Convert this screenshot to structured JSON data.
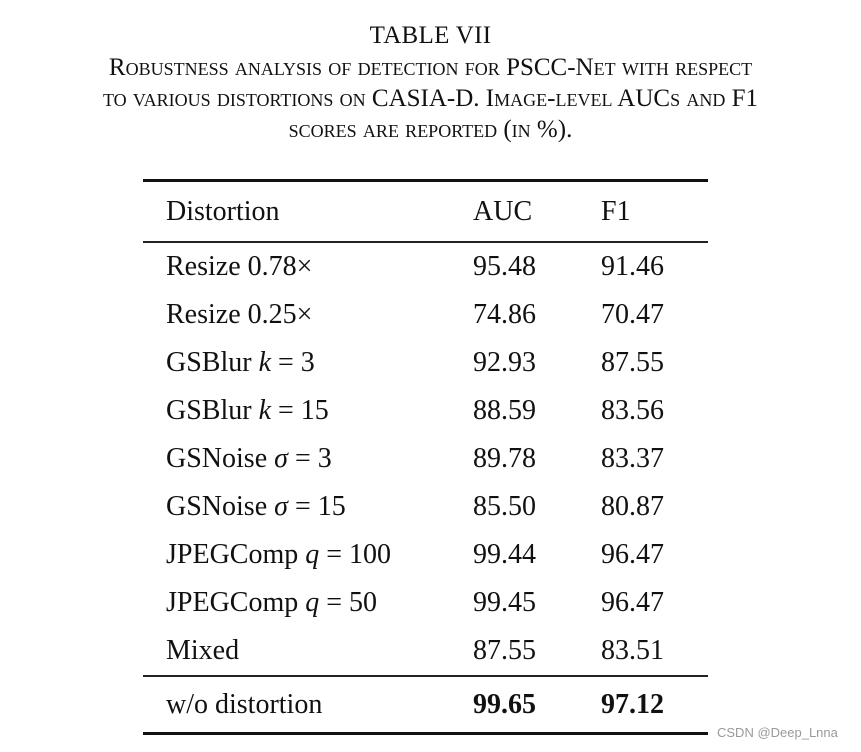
{
  "caption": {
    "title": "TABLE VII",
    "lines": [
      "Robustness analysis of detection for PSCC-Net with respect",
      "to various distortions on CASIA-D. Image-level AUCs and F1",
      "scores are reported (in %)."
    ]
  },
  "table": {
    "headers": {
      "distortion": "Distortion",
      "auc": "AUC",
      "f1": "F1"
    },
    "rows": [
      {
        "name": "Resize",
        "param": "0.78×",
        "auc": "95.48",
        "f1": "91.46"
      },
      {
        "name": "Resize",
        "param": "0.25×",
        "auc": "74.86",
        "f1": "70.47"
      },
      {
        "name": "GSBlur",
        "var": "k",
        "param": "= 3",
        "auc": "92.93",
        "f1": "87.55"
      },
      {
        "name": "GSBlur",
        "var": "k",
        "param": "= 15",
        "auc": "88.59",
        "f1": "83.56"
      },
      {
        "name": "GSNoise",
        "var": "σ",
        "param": "= 3",
        "auc": "89.78",
        "f1": "83.37"
      },
      {
        "name": "GSNoise",
        "var": "σ",
        "param": "= 15",
        "auc": "85.50",
        "f1": "80.87"
      },
      {
        "name": "JPEGComp",
        "var": "q",
        "param": "= 100",
        "auc": "99.44",
        "f1": "96.47"
      },
      {
        "name": "JPEGComp",
        "var": "q",
        "param": "= 50",
        "auc": "99.45",
        "f1": "96.47"
      },
      {
        "name": "Mixed",
        "param": "",
        "auc": "87.55",
        "f1": "83.51"
      }
    ],
    "baseline": {
      "name": "w/o distortion",
      "auc": "99.65",
      "f1": "97.12"
    }
  },
  "chart_data": {
    "type": "table",
    "title": "TABLE VII — Robustness analysis of detection for PSCC-Net with respect to various distortions on CASIA-D. Image-level AUCs and F1 scores are reported (in %).",
    "columns": [
      "Distortion",
      "AUC",
      "F1"
    ],
    "rows": [
      [
        "Resize 0.78×",
        95.48,
        91.46
      ],
      [
        "Resize 0.25×",
        74.86,
        70.47
      ],
      [
        "GSBlur k = 3",
        92.93,
        87.55
      ],
      [
        "GSBlur k = 15",
        88.59,
        83.56
      ],
      [
        "GSNoise σ = 3",
        89.78,
        83.37
      ],
      [
        "GSNoise σ = 15",
        85.5,
        80.87
      ],
      [
        "JPEGComp q = 100",
        99.44,
        96.47
      ],
      [
        "JPEGComp q = 50",
        99.45,
        96.47
      ],
      [
        "Mixed",
        87.55,
        83.51
      ],
      [
        "w/o distortion",
        99.65,
        97.12
      ]
    ],
    "bold": [
      [
        "w/o distortion",
        "AUC"
      ],
      [
        "w/o distortion",
        "F1"
      ]
    ]
  },
  "watermark": "CSDN @Deep_Lnna"
}
